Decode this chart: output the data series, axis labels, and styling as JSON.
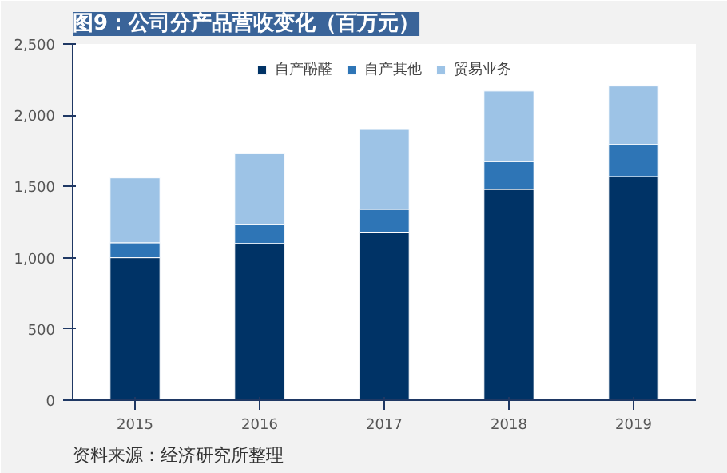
{
  "chart_data": {
    "type": "bar",
    "stacked": true,
    "title": "图9：公司分产品营收变化（百万元）",
    "categories": [
      "2015",
      "2016",
      "2017",
      "2018",
      "2019"
    ],
    "series": [
      {
        "name": "自产酚醛",
        "color": "#003366",
        "values": [
          1000,
          1100,
          1180,
          1480,
          1570
        ]
      },
      {
        "name": "自产其他",
        "color": "#2e75b6",
        "values": [
          105,
          135,
          160,
          195,
          225
        ]
      },
      {
        "name": "贸易业务",
        "color": "#9dc3e6",
        "values": [
          455,
          495,
          560,
          495,
          410
        ]
      }
    ],
    "ylim": [
      0,
      2500
    ],
    "yticks": [
      0,
      500,
      {
        "value": 1000,
        "label": "1,000"
      },
      {
        "value": 1500,
        "label": "1,500"
      },
      {
        "value": 2000,
        "label": "2,000"
      },
      {
        "value": 2500,
        "label": "2,500"
      }
    ],
    "grid": false,
    "legend": "top",
    "annotations": [
      "资料来源：经济研究所整理"
    ]
  }
}
